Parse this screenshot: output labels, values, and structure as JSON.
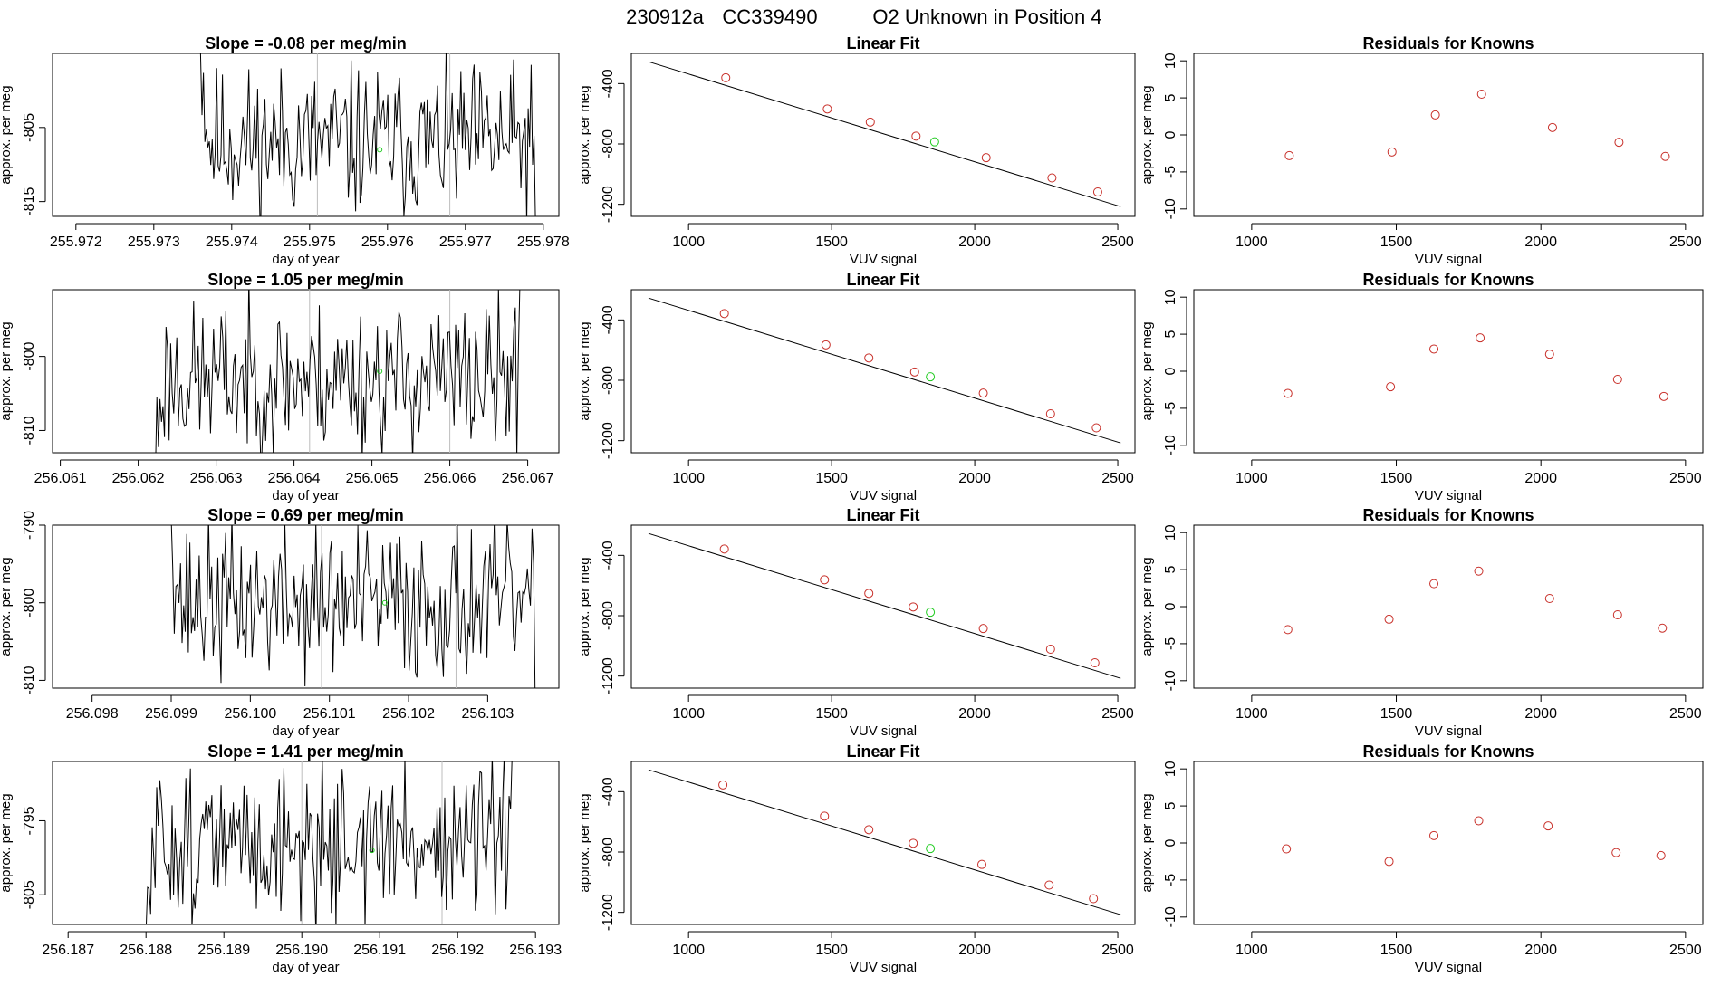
{
  "header": {
    "run_id": "230912a",
    "cylinder": "CC339490",
    "description": "O2 Unknown in Position  4"
  },
  "colors": {
    "known": "#c8302a",
    "unknown": "#22cc22",
    "guide": "#bdbdbd",
    "trace": "#000000"
  },
  "chart_data": [
    {
      "type": "line",
      "row": 0,
      "title": "Slope =  -0.08  per meg/min",
      "xlabel": "day of year",
      "ylabel": "approx. per meg",
      "xlim": [
        255.9717,
        255.9782
      ],
      "ylim": [
        -817,
        -795
      ],
      "xticks": [
        255.972,
        255.973,
        255.974,
        255.975,
        255.976,
        255.977,
        255.978
      ],
      "xtick_labels": [
        "255.972",
        "255.973",
        "255.974",
        "255.975",
        "255.976",
        "255.977",
        "255.978"
      ],
      "yticks": [
        -805,
        -815
      ],
      "ytick_labels": [
        "-805",
        "-815"
      ],
      "trace": {
        "x_start": 255.9736,
        "x_end": 255.9779,
        "n": 230,
        "mean": -807,
        "amp": 5,
        "seed": 11,
        "start_value": -795,
        "end_value": -818
      },
      "guides": [
        255.9751,
        255.9768
      ],
      "marker": {
        "x": 255.9759,
        "y": -808
      }
    },
    {
      "type": "line",
      "row": 1,
      "title": "Slope =  1.05  per meg/min",
      "xlabel": "day of year",
      "ylabel": "approx. per meg",
      "xlim": [
        256.0609,
        256.0674
      ],
      "ylim": [
        -813,
        -791
      ],
      "xticks": [
        256.061,
        256.062,
        256.063,
        256.064,
        256.065,
        256.066,
        256.067
      ],
      "xtick_labels": [
        "256.061",
        "256.062",
        "256.063",
        "256.064",
        "256.065",
        "256.066",
        "256.067"
      ],
      "yticks": [
        -800,
        -810
      ],
      "ytick_labels": [
        "-800",
        "-810"
      ],
      "trace": {
        "x_start": 256.0622,
        "x_end": 256.0669,
        "n": 240,
        "mean": -803,
        "amp": 5,
        "seed": 23,
        "start_value": -815,
        "end_value": -790
      },
      "guides": [
        256.0642,
        256.066
      ],
      "marker": {
        "x": 256.0651,
        "y": -802
      }
    },
    {
      "type": "line",
      "row": 2,
      "title": "Slope =  0.69  per meg/min",
      "xlabel": "day of year",
      "ylabel": "approx. per meg",
      "xlim": [
        256.0975,
        256.1039
      ],
      "ylim": [
        -811,
        -790
      ],
      "xticks": [
        256.098,
        256.099,
        256.1,
        256.101,
        256.102,
        256.103
      ],
      "xtick_labels": [
        "256.098",
        "256.099",
        "256.100",
        "256.101",
        "256.102",
        "256.103"
      ],
      "yticks": [
        -790,
        -800,
        -810
      ],
      "ytick_labels": [
        "-790",
        "-800",
        "-810"
      ],
      "trace": {
        "x_start": 256.099,
        "x_end": 256.1036,
        "n": 235,
        "mean": -800,
        "amp": 5,
        "seed": 37,
        "start_value": -789,
        "end_value": -812
      },
      "guides": [
        256.1009,
        256.1026
      ],
      "marker": {
        "x": 256.1017,
        "y": -800
      }
    },
    {
      "type": "line",
      "row": 3,
      "title": "Slope =  1.41  per meg/min",
      "xlabel": "day of year",
      "ylabel": "approx. per meg",
      "xlim": [
        256.1868,
        256.1933
      ],
      "ylim": [
        -809,
        -787
      ],
      "xticks": [
        256.187,
        256.188,
        256.189,
        256.19,
        256.191,
        256.192,
        256.193
      ],
      "xtick_labels": [
        "256.187",
        "256.188",
        "256.189",
        "256.190",
        "256.191",
        "256.192",
        "256.193"
      ],
      "yticks": [
        -795,
        -805
      ],
      "ytick_labels": [
        "-795",
        "-805"
      ],
      "trace": {
        "x_start": 256.188,
        "x_end": 256.1927,
        "n": 240,
        "mean": -798,
        "amp": 5,
        "seed": 51,
        "start_value": -810,
        "end_value": -786
      },
      "guides": [
        256.19,
        256.1918
      ],
      "marker": {
        "x": 256.1909,
        "y": -799
      }
    },
    {
      "type": "scatter",
      "row": 0,
      "title": "Linear Fit",
      "xlabel": "VUV signal",
      "ylabel": "approx. per meg",
      "xlim": [
        800,
        2560
      ],
      "ylim": [
        -1280,
        -200
      ],
      "xticks": [
        1000,
        1500,
        2000,
        2500
      ],
      "xtick_labels": [
        "1000",
        "1500",
        "2000",
        "2500"
      ],
      "yticks": [
        -400,
        -800,
        -1200
      ],
      "ytick_labels": [
        "-400",
        "-800",
        "-1200"
      ],
      "fit_line": {
        "x": [
          860,
          2510
        ],
        "y": [
          -255,
          -1215
        ]
      },
      "known_x": [
        1130,
        1485,
        1635,
        1795,
        2040,
        2270,
        2430
      ],
      "known_y": [
        -361,
        -568,
        -655,
        -748,
        -891,
        -1025,
        -1118
      ],
      "unknown": {
        "x": 1860,
        "y": -786
      }
    },
    {
      "type": "scatter",
      "row": 1,
      "title": "Linear Fit",
      "xlabel": "VUV signal",
      "ylabel": "approx. per meg",
      "xlim": [
        800,
        2560
      ],
      "ylim": [
        -1280,
        -200
      ],
      "xticks": [
        1000,
        1500,
        2000,
        2500
      ],
      "xtick_labels": [
        "1000",
        "1500",
        "2000",
        "2500"
      ],
      "yticks": [
        -400,
        -800,
        -1200
      ],
      "ytick_labels": [
        "-400",
        "-800",
        "-1200"
      ],
      "fit_line": {
        "x": [
          860,
          2510
        ],
        "y": [
          -255,
          -1215
        ]
      },
      "known_x": [
        1125,
        1480,
        1630,
        1790,
        2030,
        2265,
        2425
      ],
      "known_y": [
        -358,
        -565,
        -652,
        -745,
        -885,
        -1022,
        -1115
      ],
      "unknown": {
        "x": 1845,
        "y": -777
      }
    },
    {
      "type": "scatter",
      "row": 2,
      "title": "Linear Fit",
      "xlabel": "VUV signal",
      "ylabel": "approx. per meg",
      "xlim": [
        800,
        2560
      ],
      "ylim": [
        -1280,
        -200
      ],
      "xticks": [
        1000,
        1500,
        2000,
        2500
      ],
      "xtick_labels": [
        "1000",
        "1500",
        "2000",
        "2500"
      ],
      "yticks": [
        -400,
        -800,
        -1200
      ],
      "ytick_labels": [
        "-400",
        "-800",
        "-1200"
      ],
      "fit_line": {
        "x": [
          860,
          2510
        ],
        "y": [
          -255,
          -1215
        ]
      },
      "known_x": [
        1125,
        1475,
        1630,
        1785,
        2030,
        2265,
        2420
      ],
      "known_y": [
        -358,
        -562,
        -652,
        -742,
        -885,
        -1022,
        -1112
      ],
      "unknown": {
        "x": 1845,
        "y": -777
      }
    },
    {
      "type": "scatter",
      "row": 3,
      "title": "Linear Fit",
      "xlabel": "VUV signal",
      "ylabel": "approx. per meg",
      "xlim": [
        800,
        2560
      ],
      "ylim": [
        -1280,
        -200
      ],
      "xticks": [
        1000,
        1500,
        2000,
        2500
      ],
      "xtick_labels": [
        "1000",
        "1500",
        "2000",
        "2500"
      ],
      "yticks": [
        -400,
        -800,
        -1200
      ],
      "ytick_labels": [
        "-400",
        "-800",
        "-1200"
      ],
      "fit_line": {
        "x": [
          860,
          2510
        ],
        "y": [
          -255,
          -1215
        ]
      },
      "known_x": [
        1120,
        1475,
        1630,
        1785,
        2025,
        2260,
        2415
      ],
      "known_y": [
        -355,
        -562,
        -652,
        -742,
        -882,
        -1019,
        -1109
      ],
      "unknown": {
        "x": 1845,
        "y": -777
      }
    },
    {
      "type": "scatter",
      "row": 0,
      "title": "Residuals for Knowns",
      "xlabel": "VUV signal",
      "ylabel": "approx. per meg",
      "xlim": [
        800,
        2560
      ],
      "ylim": [
        -11,
        11
      ],
      "xticks": [
        1000,
        1500,
        2000,
        2500
      ],
      "xtick_labels": [
        "1000",
        "1500",
        "2000",
        "2500"
      ],
      "yticks": [
        10,
        5,
        0,
        -5,
        -10
      ],
      "ytick_labels": [
        "10",
        "5",
        "0",
        "-5",
        "-10"
      ],
      "x": [
        1130,
        1485,
        1635,
        1795,
        2040,
        2270,
        2430
      ],
      "y": [
        -2.8,
        -2.3,
        2.7,
        5.5,
        1.0,
        -1.0,
        -2.9
      ]
    },
    {
      "type": "scatter",
      "row": 1,
      "title": "Residuals for Knowns",
      "xlabel": "VUV signal",
      "ylabel": "approx. per meg",
      "xlim": [
        800,
        2560
      ],
      "ylim": [
        -11,
        11
      ],
      "xticks": [
        1000,
        1500,
        2000,
        2500
      ],
      "xtick_labels": [
        "1000",
        "1500",
        "2000",
        "2500"
      ],
      "yticks": [
        10,
        5,
        0,
        -5,
        -10
      ],
      "ytick_labels": [
        "10",
        "5",
        "0",
        "-5",
        "-10"
      ],
      "x": [
        1125,
        1480,
        1630,
        1790,
        2030,
        2265,
        2425
      ],
      "y": [
        -3.0,
        -2.1,
        3.0,
        4.5,
        2.3,
        -1.1,
        -3.4
      ]
    },
    {
      "type": "scatter",
      "row": 2,
      "title": "Residuals for Knowns",
      "xlabel": "VUV signal",
      "ylabel": "approx. per meg",
      "xlim": [
        800,
        2560
      ],
      "ylim": [
        -11,
        11
      ],
      "xticks": [
        1000,
        1500,
        2000,
        2500
      ],
      "xtick_labels": [
        "1000",
        "1500",
        "2000",
        "2500"
      ],
      "yticks": [
        10,
        5,
        0,
        -5,
        -10
      ],
      "ytick_labels": [
        "10",
        "5",
        "0",
        "-5",
        "-10"
      ],
      "x": [
        1125,
        1475,
        1630,
        1785,
        2030,
        2265,
        2420
      ],
      "y": [
        -3.1,
        -1.7,
        3.1,
        4.8,
        1.1,
        -1.1,
        -2.9
      ]
    },
    {
      "type": "scatter",
      "row": 3,
      "title": "Residuals for Knowns",
      "xlabel": "VUV signal",
      "ylabel": "approx. per meg",
      "xlim": [
        800,
        2560
      ],
      "ylim": [
        -11,
        11
      ],
      "xticks": [
        1000,
        1500,
        2000,
        2500
      ],
      "xtick_labels": [
        "1000",
        "1500",
        "2000",
        "2500"
      ],
      "yticks": [
        10,
        5,
        0,
        -5,
        -10
      ],
      "ytick_labels": [
        "10",
        "5",
        "0",
        "-5",
        "-10"
      ],
      "x": [
        1120,
        1475,
        1630,
        1785,
        2025,
        2260,
        2415
      ],
      "y": [
        -0.8,
        -2.5,
        1.0,
        3.0,
        2.3,
        -1.3,
        -1.7
      ]
    }
  ]
}
